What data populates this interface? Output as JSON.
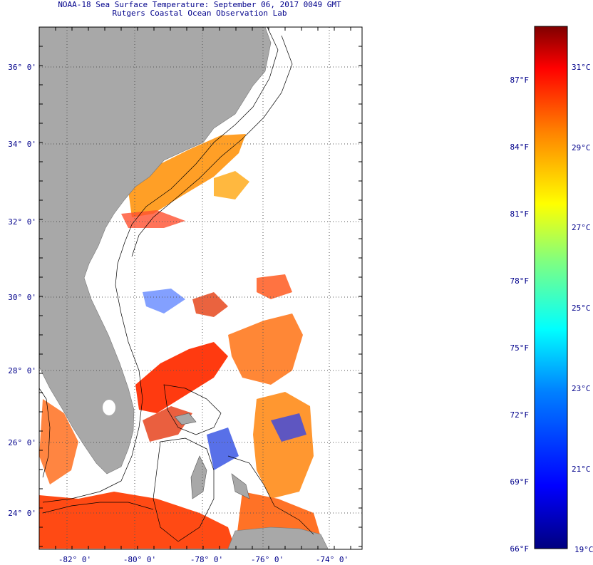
{
  "header": {
    "title_line1": "NOAA-18 Sea Surface Temperature:  September 06, 2017 0049 GMT",
    "title_line2": "Rutgers Coastal Ocean Observation Lab"
  },
  "map": {
    "lat_labels": [
      "36° 0'",
      "34° 0'",
      "32° 0'",
      "30° 0'",
      "28° 0'",
      "26° 0'",
      "24° 0'"
    ],
    "lon_labels": [
      "-82° 0'",
      "-80° 0'",
      "-78° 0'",
      "-76° 0'",
      "-74° 0'"
    ],
    "colors": {
      "land": "#a8a8a8",
      "frame": "#000000",
      "gridline": "#555555",
      "label": "#00008b"
    }
  },
  "colorbar": {
    "fahrenheit_labels": [
      "87°F",
      "84°F",
      "81°F",
      "78°F",
      "75°F",
      "72°F",
      "69°F",
      "66°F"
    ],
    "celsius_labels": [
      "31°C",
      "29°C",
      "27°C",
      "25°C",
      "23°C",
      "21°C",
      "19°C"
    ],
    "colors": [
      "#00007f",
      "#0000ff",
      "#0080ff",
      "#00ffff",
      "#80ff80",
      "#ffff00",
      "#ff8000",
      "#ff0000",
      "#7f0000"
    ]
  }
}
